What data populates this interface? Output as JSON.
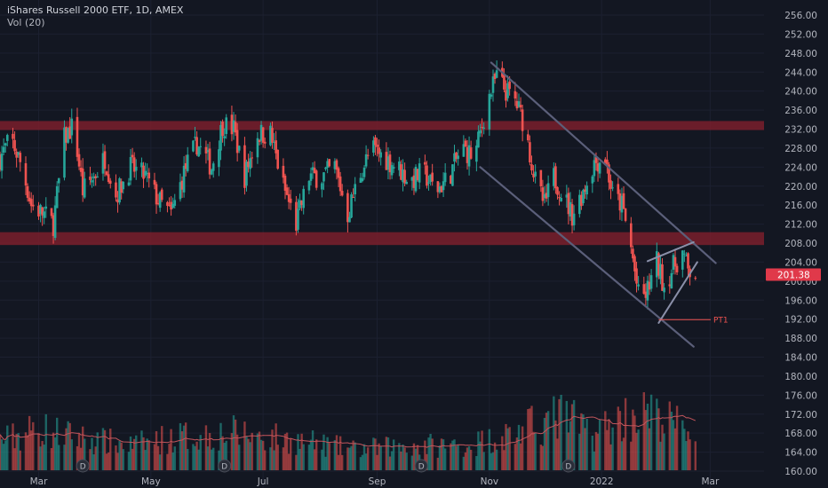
{
  "legend": {
    "title": "iShares Russell 2000 ETF, 1D, AMEX",
    "volume": "Vol (20)"
  },
  "colors": {
    "background": "#131722",
    "up": "#26a69a",
    "down": "#ef5350",
    "zone": "#7a1f2b",
    "channel": "#5b5f7a",
    "price_badge": "#e0394a",
    "volume_ma": "#c2555c",
    "axis_text": "#b2b5be"
  },
  "chart_data": {
    "type": "candlestick",
    "instrument": "iShares Russell 2000 ETF",
    "interval": "1D",
    "exchange": "AMEX",
    "ylim": [
      160,
      257
    ],
    "y_ticks": [
      160.0,
      164.0,
      168.0,
      172.0,
      176.0,
      180.0,
      184.0,
      188.0,
      192.0,
      196.0,
      200.0,
      204.0,
      208.0,
      212.0,
      216.0,
      220.0,
      224.0,
      228.0,
      232.0,
      236.0,
      240.0,
      244.0,
      248.0,
      252.0,
      256.0
    ],
    "x_labels": [
      {
        "label": "Mar",
        "date": "2021-03-01"
      },
      {
        "label": "May",
        "date": "2021-05-01"
      },
      {
        "label": "Jul",
        "date": "2021-07-01"
      },
      {
        "label": "Sep",
        "date": "2021-09-01"
      },
      {
        "label": "Nov",
        "date": "2021-11-01"
      },
      {
        "label": "2022",
        "date": "2022-01-01"
      },
      {
        "label": "Mar",
        "date": "2022-03-01"
      }
    ],
    "x_range": [
      "2021-02-08",
      "2022-03-10"
    ],
    "last_price": {
      "value": 201.38,
      "label": "201.38"
    },
    "price_path": [
      [
        "2021-02-08",
        226
      ],
      [
        "2021-02-14",
        230
      ],
      [
        "2021-02-20",
        224
      ],
      [
        "2021-02-25",
        216
      ],
      [
        "2021-03-04",
        214
      ],
      [
        "2021-03-09",
        212
      ],
      [
        "2021-03-15",
        230
      ],
      [
        "2021-03-20",
        233
      ],
      [
        "2021-03-25",
        219
      ],
      [
        "2021-03-31",
        222
      ],
      [
        "2021-04-06",
        226
      ],
      [
        "2021-04-12",
        218
      ],
      [
        "2021-04-20",
        224
      ],
      [
        "2021-04-28",
        222
      ],
      [
        "2021-05-05",
        217
      ],
      [
        "2021-05-12",
        214
      ],
      [
        "2021-05-20",
        224
      ],
      [
        "2021-05-26",
        229
      ],
      [
        "2021-06-03",
        224
      ],
      [
        "2021-06-09",
        233
      ],
      [
        "2021-06-15",
        232
      ],
      [
        "2021-06-21",
        222
      ],
      [
        "2021-06-28",
        231
      ],
      [
        "2021-07-05",
        231
      ],
      [
        "2021-07-12",
        220
      ],
      [
        "2021-07-19",
        212
      ],
      [
        "2021-07-26",
        222
      ],
      [
        "2021-08-02",
        222
      ],
      [
        "2021-08-09",
        224
      ],
      [
        "2021-08-16",
        214
      ],
      [
        "2021-08-22",
        222
      ],
      [
        "2021-08-29",
        228
      ],
      [
        "2021-09-05",
        226
      ],
      [
        "2021-09-12",
        224
      ],
      [
        "2021-09-19",
        221
      ],
      [
        "2021-09-26",
        223
      ],
      [
        "2021-10-03",
        219
      ],
      [
        "2021-10-10",
        222
      ],
      [
        "2021-10-17",
        228
      ],
      [
        "2021-10-24",
        226
      ],
      [
        "2021-10-31",
        238
      ],
      [
        "2021-11-05",
        243
      ],
      [
        "2021-11-10",
        240
      ],
      [
        "2021-11-15",
        238
      ],
      [
        "2021-11-20",
        233
      ],
      [
        "2021-11-26",
        221
      ],
      [
        "2021-12-01",
        216
      ],
      [
        "2021-12-06",
        222
      ],
      [
        "2021-12-10",
        219
      ],
      [
        "2021-12-16",
        214
      ],
      [
        "2021-12-22",
        219
      ],
      [
        "2021-12-28",
        225
      ],
      [
        "2022-01-03",
        226
      ],
      [
        "2022-01-07",
        218
      ],
      [
        "2022-01-12",
        216
      ],
      [
        "2022-01-17",
        207
      ],
      [
        "2022-01-21",
        197
      ],
      [
        "2022-01-25",
        197
      ],
      [
        "2022-01-31",
        204
      ],
      [
        "2022-02-04",
        199
      ],
      [
        "2022-02-09",
        203
      ],
      [
        "2022-02-14",
        206
      ],
      [
        "2022-02-17",
        202
      ],
      [
        "2022-02-21",
        201.38
      ]
    ],
    "volume_path": [
      [
        "2021-02-08",
        0.35
      ],
      [
        "2021-03-01",
        0.5
      ],
      [
        "2021-03-20",
        0.4
      ],
      [
        "2021-04-20",
        0.3
      ],
      [
        "2021-05-15",
        0.4
      ],
      [
        "2021-06-15",
        0.45
      ],
      [
        "2021-07-20",
        0.35
      ],
      [
        "2021-08-20",
        0.25
      ],
      [
        "2021-09-20",
        0.3
      ],
      [
        "2021-10-20",
        0.3
      ],
      [
        "2021-11-15",
        0.45
      ],
      [
        "2021-12-10",
        0.65
      ],
      [
        "2021-12-28",
        0.45
      ],
      [
        "2022-01-20",
        0.7
      ],
      [
        "2022-02-05",
        0.6
      ],
      [
        "2022-02-21",
        0.45
      ]
    ],
    "zones": [
      {
        "name": "resistance-zone",
        "from": 231.8,
        "to": 233.7
      },
      {
        "name": "support-zone",
        "from": 207.6,
        "to": 210.3
      }
    ],
    "channel": {
      "upper": [
        [
          "2021-11-02",
          246.0
        ],
        [
          "2022-03-04",
          203.8
        ]
      ],
      "lower": [
        [
          "2021-10-27",
          224.0
        ],
        [
          "2022-02-20",
          186.2
        ]
      ]
    },
    "triangle": {
      "top": [
        [
          "2022-01-26",
          204.2
        ],
        [
          "2022-02-20",
          208.2
        ]
      ],
      "bottom": [
        [
          "2022-02-01",
          191.2
        ],
        [
          "2022-02-22",
          204.0
        ]
      ]
    },
    "target": {
      "label": "PT1",
      "value": 191.9,
      "from": "2022-02-01",
      "to": "2022-03-10"
    }
  }
}
